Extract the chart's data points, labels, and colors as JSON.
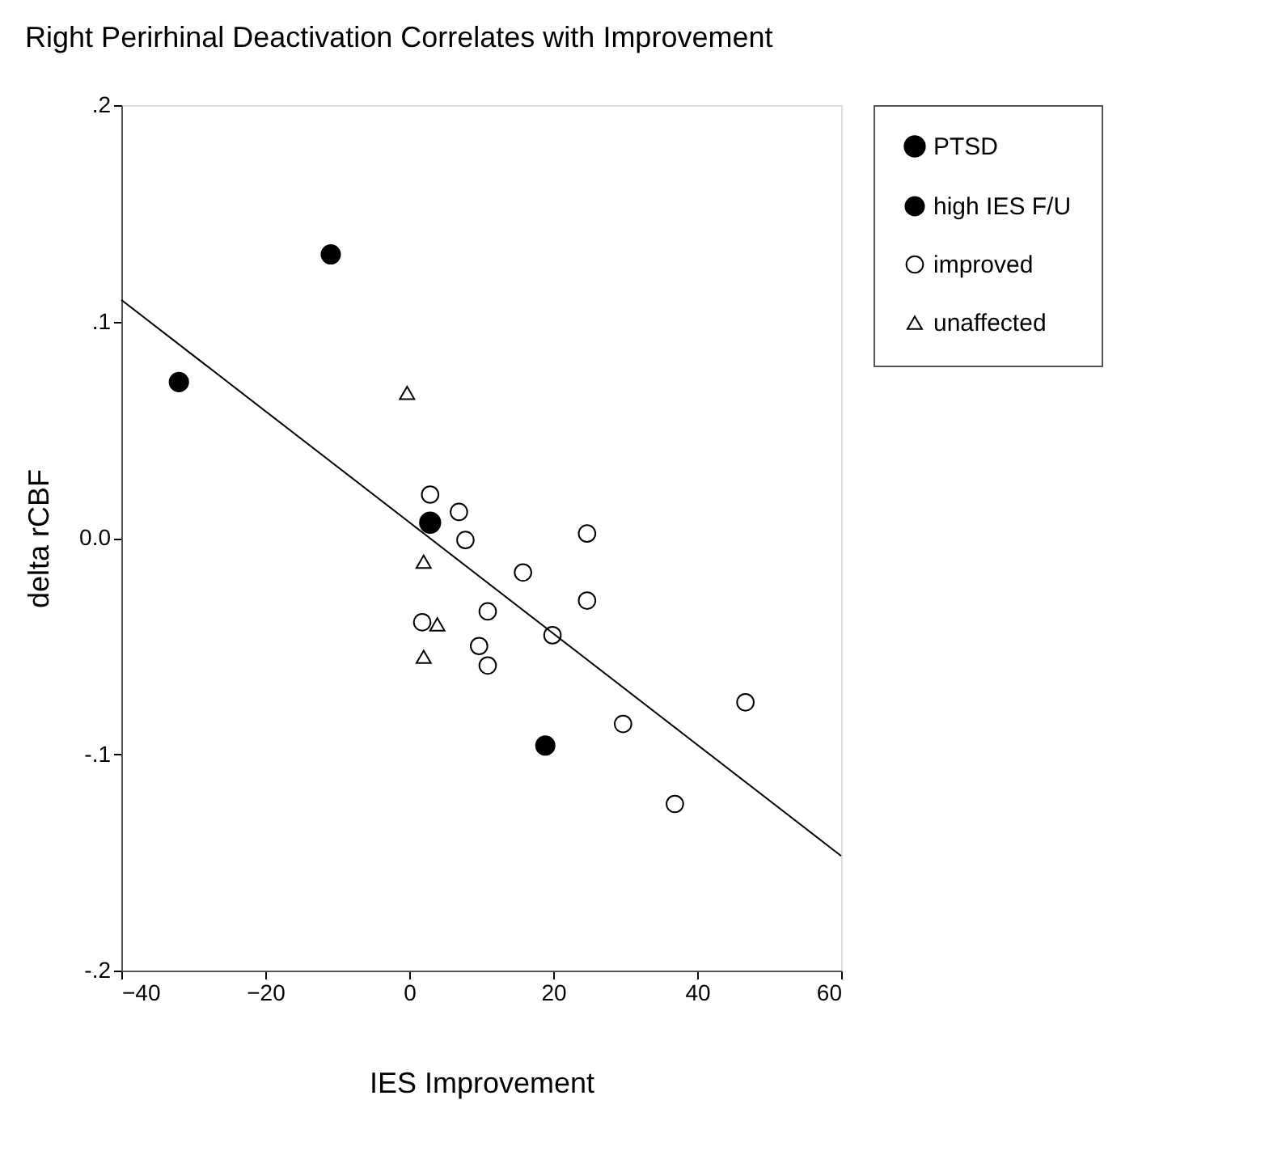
{
  "chart_data": {
    "type": "scatter",
    "title": "Right Perirhinal Deactivation Correlates with Improvement",
    "xlabel": "IES Improvement",
    "ylabel": "delta rCBF",
    "xlim": [
      -40,
      60
    ],
    "xticks": [
      -40,
      -20,
      0,
      20,
      40,
      60
    ],
    "ylim": [
      -0.2,
      0.2
    ],
    "yticks": [
      {
        "value": 0.2,
        "label": ".2"
      },
      {
        "value": 0.1,
        "label": ".1"
      },
      {
        "value": 0,
        "label": "0.0"
      },
      {
        "value": -0.1,
        "label": "-.1"
      },
      {
        "value": -0.2,
        "label": "-.2"
      }
    ],
    "grid": false,
    "legend": "right",
    "series": [
      {
        "name": "PTSD",
        "color": "#000000",
        "marker": "circle",
        "x": [
          2.9
        ],
        "values": [
          0.007
        ]
      },
      {
        "name": "high IES F/U",
        "color": "#000000",
        "marker": "circle",
        "x": [
          -10.9,
          -32,
          18.9
        ],
        "values": [
          0.131,
          0.072,
          -0.096
        ]
      },
      {
        "name": "improved",
        "color": "#000000",
        "marker": "circle",
        "x": [
          2.9,
          6.9,
          7.8,
          24.7,
          15.8,
          24.7,
          10.9,
          1.8,
          19.9,
          9.7,
          10.9,
          46.7,
          29.7,
          36.9
        ],
        "values": [
          0.02,
          0.012,
          -0.001,
          0.002,
          -0.016,
          -0.029,
          -0.034,
          -0.039,
          -0.045,
          -0.05,
          -0.059,
          -0.076,
          -0.086,
          -0.123
        ]
      },
      {
        "name": "unaffected",
        "color": "#000000",
        "marker": "triangle",
        "x": [
          -0.3,
          2.0,
          3.9,
          2.0
        ],
        "values": [
          0.067,
          -0.011,
          -0.04,
          -0.055
        ]
      },
      {
        "type": "line",
        "color": "#000000",
        "line_style": "solid",
        "x": [
          -40,
          60
        ],
        "values": [
          0.11,
          -0.147
        ]
      }
    ]
  }
}
